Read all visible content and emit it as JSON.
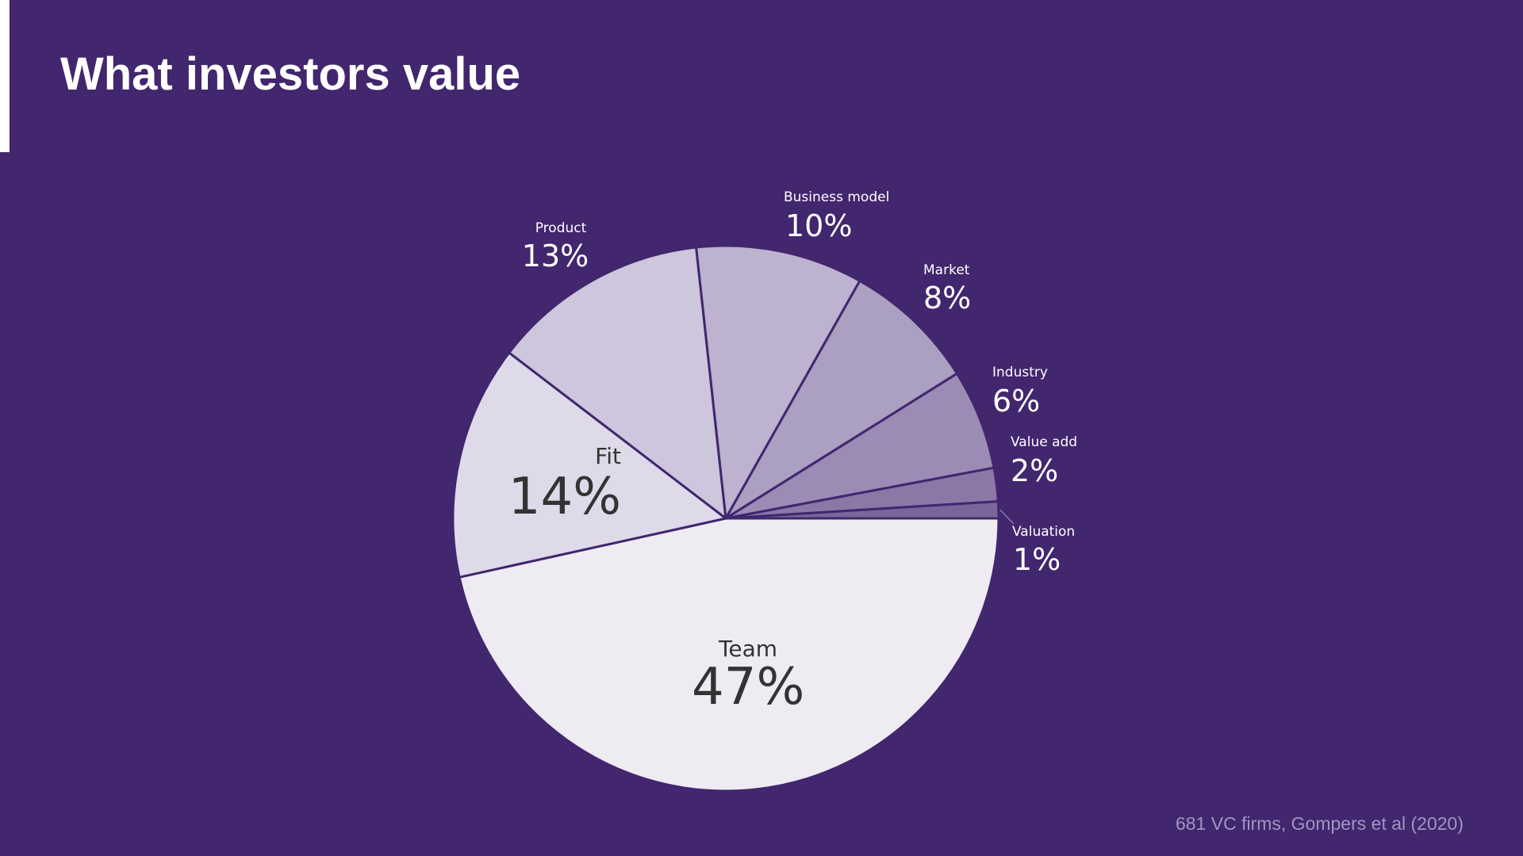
{
  "slide": {
    "title": "What investors value",
    "source": "681 VC firms, Gompers et al (2020)"
  },
  "colors": {
    "background": "#42266e",
    "text_light": "#ffffff",
    "text_dark": "#333333",
    "source_text": "#a196c2"
  },
  "chart_data": {
    "type": "pie",
    "unit": "%",
    "slices": [
      {
        "label": "Team",
        "value": 47,
        "color": "#eeebf3"
      },
      {
        "label": "Fit",
        "value": 14,
        "color": "#dfdaea"
      },
      {
        "label": "Product",
        "value": 13,
        "color": "#cec6dc"
      },
      {
        "label": "Business model",
        "value": 10,
        "color": "#bdb2cf"
      },
      {
        "label": "Market",
        "value": 8,
        "color": "#ab9fc2"
      },
      {
        "label": "Industry",
        "value": 6,
        "color": "#9c8bb4"
      },
      {
        "label": "Value add",
        "value": 2,
        "color": "#8b78a7"
      },
      {
        "label": "Valuation",
        "value": 1,
        "color": "#7a669a"
      }
    ]
  }
}
